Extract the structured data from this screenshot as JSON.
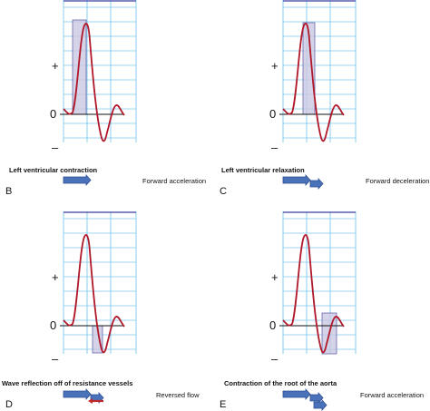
{
  "colors": {
    "grid": "#7ec8ee",
    "frame": "#5a5fb0",
    "wave": "#b0182a",
    "highlight_fill": "#c9c8e2",
    "highlight_stroke": "#6a68a8",
    "arrow_fill": "#4a72b8",
    "arrow_stroke": "#2d4f95",
    "reverse_arrow": "#c0282a"
  },
  "panels": [
    {
      "id": "B",
      "letter": "B",
      "caption": "Left ventricular contraction",
      "effect": "Forward acceleration",
      "axis": {
        "plus": "+",
        "zero": "0",
        "minus": "–"
      },
      "highlight": "systolic-upstroke",
      "arrows": [
        "forward"
      ]
    },
    {
      "id": "C",
      "letter": "C",
      "caption": "Left ventricular relaxation",
      "effect": "Forward deceleration",
      "axis": {
        "plus": "+",
        "zero": "0",
        "minus": "–"
      },
      "highlight": "systolic-downstroke",
      "arrows": [
        "forward",
        "forward-short"
      ]
    },
    {
      "id": "D",
      "letter": "D",
      "caption": "Wave reflection off of resistance vessels",
      "effect": "Reversed flow",
      "axis": {
        "plus": "+",
        "zero": "0",
        "minus": "–"
      },
      "highlight": "reversal-trough",
      "arrows": [
        "forward",
        "forward-short",
        "reverse"
      ]
    },
    {
      "id": "E",
      "letter": "E",
      "caption": "Contraction of the root of the aorta",
      "effect": "Forward acceleration",
      "axis": {
        "plus": "+",
        "zero": "0",
        "minus": "–"
      },
      "highlight": "diastolic-rebound",
      "arrows": [
        "forward",
        "forward-short",
        "forward-short"
      ]
    }
  ]
}
